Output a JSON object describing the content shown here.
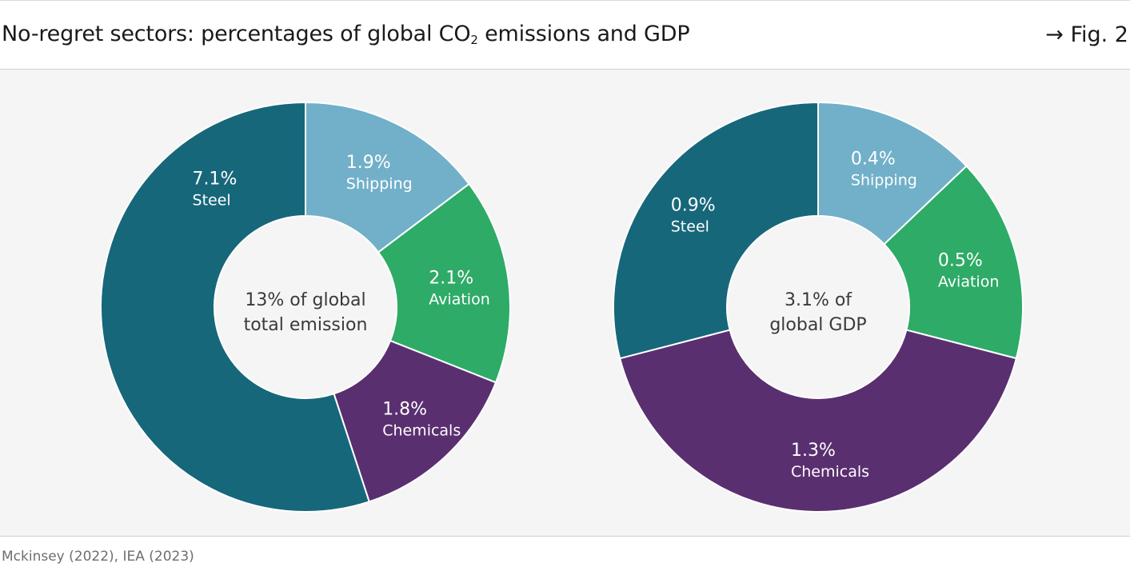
{
  "header": {
    "title_main": "No-regret sectors: percentages of global CO",
    "title_sub": "2",
    "title_tail": " emissions and GDP",
    "fig_ref": "→ Fig. 2"
  },
  "source": "Mckinsey (2022), IEA (2023)",
  "colors": {
    "steel": "#17677a",
    "shipping": "#72b0c9",
    "aviation": "#2eab67",
    "chemicals": "#5a2f70",
    "background": "#f5f5f5"
  },
  "chart_data": [
    {
      "type": "pie",
      "variant": "donut",
      "center_label": [
        "13% of global",
        "total emission"
      ],
      "slices": [
        {
          "label": "Shipping",
          "value": 1.9,
          "value_label": "1.9%",
          "color": "#72b0c9"
        },
        {
          "label": "Aviation",
          "value": 2.1,
          "value_label": "2.1%",
          "color": "#2eab67"
        },
        {
          "label": "Chemicals",
          "value": 1.8,
          "value_label": "1.8%",
          "color": "#5a2f70"
        },
        {
          "label": "Steel",
          "value": 7.1,
          "value_label": "7.1%",
          "color": "#17677a"
        }
      ]
    },
    {
      "type": "pie",
      "variant": "donut",
      "center_label": [
        "3.1% of",
        "global GDP"
      ],
      "slices": [
        {
          "label": "Shipping",
          "value": 0.4,
          "value_label": "0.4%",
          "color": "#72b0c9"
        },
        {
          "label": "Aviation",
          "value": 0.5,
          "value_label": "0.5%",
          "color": "#2eab67"
        },
        {
          "label": "Chemicals",
          "value": 1.3,
          "value_label": "1.3%",
          "color": "#5a2f70"
        },
        {
          "label": "Steel",
          "value": 0.9,
          "value_label": "0.9%",
          "color": "#17677a"
        }
      ]
    }
  ]
}
